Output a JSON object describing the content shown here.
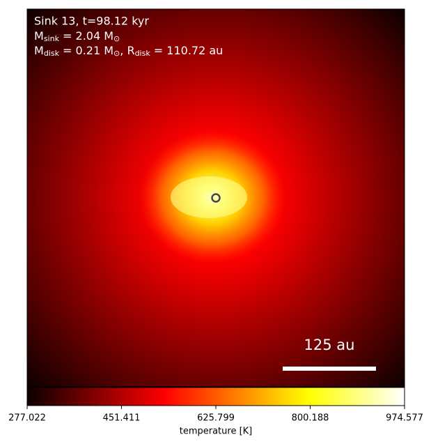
{
  "chart_data": {
    "type": "image",
    "colormap": "hot",
    "annotations": [
      {
        "text": "Sink 13, t=98.12 kyr"
      },
      {
        "parts": [
          {
            "text": "M"
          },
          {
            "sub": "sink"
          },
          {
            "text": " = 2.04 M"
          },
          {
            "sub": "⊙"
          }
        ]
      },
      {
        "parts": [
          {
            "text": "M"
          },
          {
            "sub": "disk"
          },
          {
            "text": " = 0.21 M"
          },
          {
            "sub": "⊙"
          },
          {
            "text": ", R"
          },
          {
            "sub": "disk"
          },
          {
            "text": " = 110.72 au"
          }
        ]
      }
    ],
    "scalebar_label": "125 au",
    "colorbar": {
      "label": "temperature [K]",
      "lim": [
        277.022,
        974.577
      ],
      "ticks": [
        277.022,
        451.411,
        625.799,
        800.188,
        974.577
      ]
    }
  }
}
